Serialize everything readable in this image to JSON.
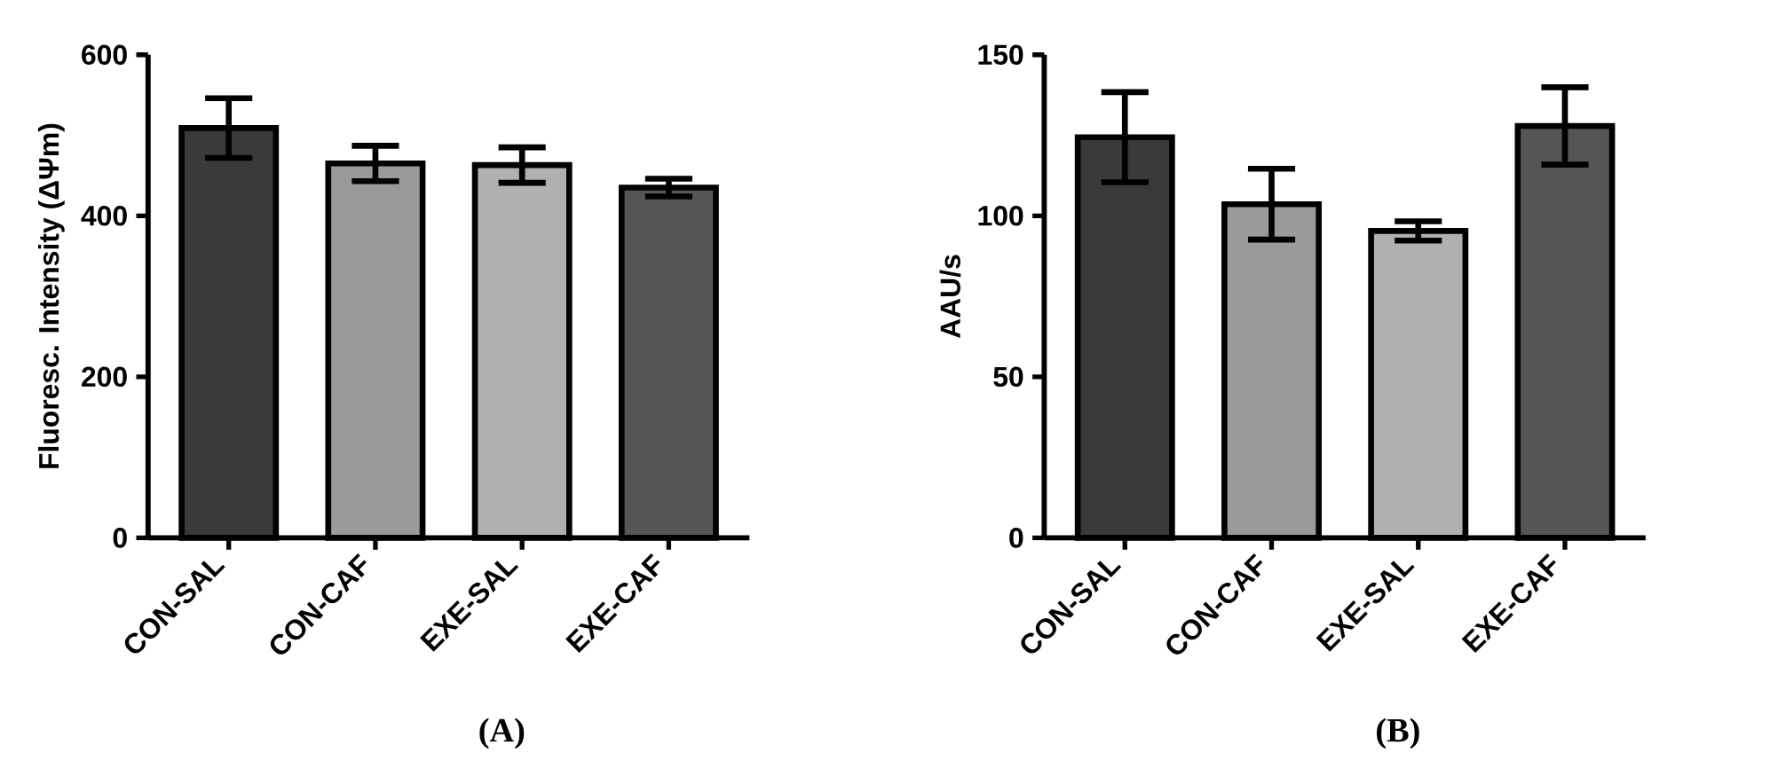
{
  "chart_data": [
    {
      "type": "bar",
      "categories": [
        "CON-SAL",
        "CON-CAF",
        "EXE-SAL",
        "EXE-CAF"
      ],
      "values": [
        509,
        465,
        463,
        435
      ],
      "errors": [
        37,
        22,
        22,
        11
      ],
      "colors": [
        "#3a3a3a",
        "#9a9a9a",
        "#b0b0b0",
        "#555555"
      ],
      "ylabel": "Fluoresc. Intensity (ΔΨm)",
      "ylim": [
        0,
        600
      ],
      "yticks": [
        0,
        200,
        400,
        600
      ],
      "annotations": [
        "(A)"
      ]
    },
    {
      "type": "bar",
      "categories": [
        "CON-SAL",
        "CON-CAF",
        "EXE-SAL",
        "EXE-CAF"
      ],
      "values": [
        124.4,
        103.6,
        95.3,
        127.9
      ],
      "errors": [
        14,
        11,
        3,
        12
      ],
      "colors": [
        "#3a3a3a",
        "#9a9a9a",
        "#b0b0b0",
        "#555555"
      ],
      "ylabel": "AAU/s",
      "ylim": [
        0,
        150
      ],
      "yticks": [
        0,
        50,
        100,
        150
      ],
      "annotations": [
        "(B)"
      ]
    }
  ]
}
